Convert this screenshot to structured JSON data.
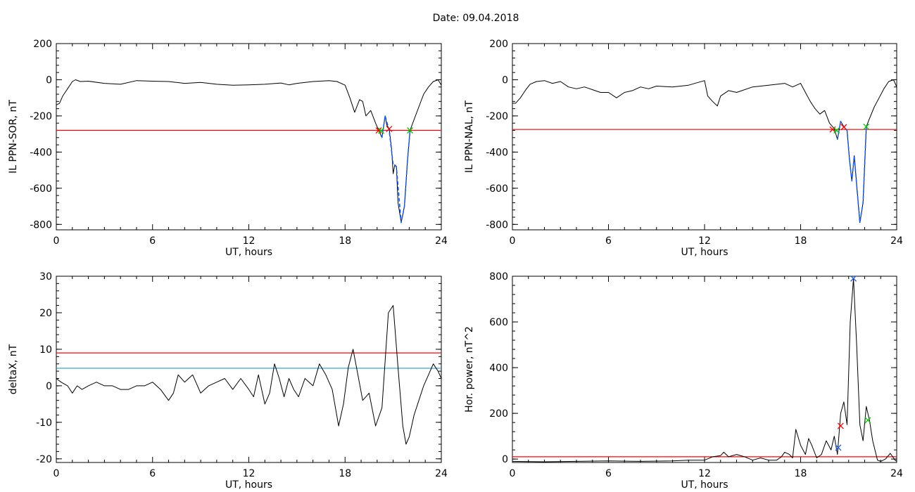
{
  "page": {
    "title": "Date:  09.04.2018"
  },
  "colors": {
    "trace": "#000000",
    "threshold_red": "#ff0000",
    "threshold_blue": "#1f9fd0",
    "fit_blue": "#1060ff",
    "marker_red": "#ff0000",
    "marker_green": "#00c800",
    "marker_blue": "#1f5fe0"
  },
  "chart_data": [
    {
      "id": "sor",
      "type": "line",
      "xlabel": "UT, hours",
      "ylabel": "IL PPN-SOR, nT",
      "xlim": [
        0,
        24
      ],
      "ylim": [
        -830,
        200
      ],
      "xticks": [
        0,
        6,
        12,
        18,
        24
      ],
      "yticks": [
        200,
        0,
        -200,
        -400,
        -600,
        -800
      ],
      "threshold": {
        "y": -280,
        "color": "#ff0000"
      },
      "series": [
        {
          "style": "trace",
          "x": [
            0,
            0.2,
            0.4,
            0.7,
            1.0,
            1.2,
            1.5,
            2,
            3,
            4,
            5,
            6,
            7,
            8,
            9,
            10,
            11,
            12,
            13,
            14,
            14.5,
            15,
            16,
            17,
            17.5,
            18,
            18.3,
            18.6,
            18.9,
            19.1,
            19.3,
            19.6,
            19.9,
            20.1,
            20.3,
            20.5,
            20.6,
            20.75,
            20.9,
            21.0,
            21.1,
            21.2,
            21.3,
            21.5,
            21.7,
            21.9,
            22.05,
            22.3,
            22.6,
            22.9,
            23.2,
            23.5,
            23.8,
            24
          ],
          "y": [
            -140,
            -130,
            -90,
            -50,
            -10,
            0,
            -10,
            -8,
            -20,
            -25,
            -5,
            -8,
            -10,
            -20,
            -15,
            -25,
            -30,
            -28,
            -25,
            -18,
            -28,
            -20,
            -10,
            -5,
            -10,
            -30,
            -100,
            -180,
            -110,
            -120,
            -200,
            -170,
            -240,
            -280,
            -320,
            -200,
            -250,
            -270,
            -380,
            -520,
            -470,
            -480,
            -680,
            -790,
            -700,
            -440,
            -280,
            -220,
            -150,
            -80,
            -40,
            -10,
            0,
            -30
          ]
        },
        {
          "style": "fit",
          "x": [
            20.3,
            20.5,
            20.75,
            21.0,
            21.2,
            21.5,
            21.7,
            21.9,
            22.05
          ],
          "y": [
            -320,
            -200,
            -280,
            -470,
            -480,
            -790,
            -700,
            -440,
            -280
          ]
        }
      ],
      "markers": [
        {
          "x": 20.1,
          "y": -280,
          "color": "#ff0000"
        },
        {
          "x": 20.25,
          "y": -282,
          "color": "#00c800"
        },
        {
          "x": 20.75,
          "y": -272,
          "color": "#ff0000"
        },
        {
          "x": 22.05,
          "y": -280,
          "color": "#00c800"
        }
      ]
    },
    {
      "id": "nal",
      "type": "line",
      "xlabel": "UT, hours",
      "ylabel": "IL PPN-NAL, nT",
      "xlim": [
        0,
        24
      ],
      "ylim": [
        -830,
        200
      ],
      "xticks": [
        0,
        6,
        12,
        18,
        24
      ],
      "yticks": [
        200,
        0,
        -200,
        -400,
        -600,
        -800
      ],
      "threshold": {
        "y": -275,
        "color": "#ff0000"
      },
      "series": [
        {
          "style": "trace",
          "x": [
            0,
            0.2,
            0.5,
            0.8,
            1.1,
            1.5,
            2,
            2.5,
            3,
            3.5,
            4,
            4.5,
            5,
            5.5,
            6,
            6.5,
            7,
            7.5,
            8,
            8.5,
            9,
            10,
            11,
            12,
            12.2,
            12.5,
            12.8,
            13,
            13.5,
            14,
            15,
            16,
            17,
            17.5,
            18,
            18.3,
            18.6,
            18.9,
            19.2,
            19.5,
            19.8,
            20.1,
            20.3,
            20.5,
            20.7,
            20.9,
            21.05,
            21.2,
            21.35,
            21.5,
            21.7,
            21.9,
            22.1,
            22.3,
            22.6,
            22.9,
            23.2,
            23.5,
            23.8,
            24
          ],
          "y": [
            -130,
            -130,
            -100,
            -60,
            -25,
            -10,
            -5,
            -20,
            -10,
            -40,
            -50,
            -40,
            -55,
            -70,
            -70,
            -100,
            -70,
            -60,
            -40,
            -50,
            -35,
            -40,
            -30,
            -5,
            -90,
            -120,
            -145,
            -90,
            -60,
            -70,
            -40,
            -30,
            -20,
            -40,
            -20,
            -70,
            -120,
            -160,
            -190,
            -170,
            -240,
            -270,
            -330,
            -230,
            -260,
            -280,
            -440,
            -560,
            -420,
            -580,
            -790,
            -680,
            -260,
            -215,
            -150,
            -100,
            -50,
            -10,
            0,
            -40
          ]
        },
        {
          "style": "fit",
          "x": [
            20.3,
            20.5,
            20.7,
            20.9,
            21.05,
            21.2,
            21.35,
            21.5,
            21.7,
            21.9,
            22.1
          ],
          "y": [
            -330,
            -230,
            -260,
            -280,
            -440,
            -560,
            -420,
            -580,
            -790,
            -680,
            -260
          ]
        }
      ],
      "markers": [
        {
          "x": 20.0,
          "y": -275,
          "color": "#ff0000"
        },
        {
          "x": 20.25,
          "y": -280,
          "color": "#00c800"
        },
        {
          "x": 20.7,
          "y": -262,
          "color": "#ff0000"
        },
        {
          "x": 22.1,
          "y": -260,
          "color": "#00c800"
        }
      ]
    },
    {
      "id": "deltax",
      "type": "line",
      "xlabel": "UT, hours",
      "ylabel": "deltaX, nT",
      "xlim": [
        0,
        24
      ],
      "ylim": [
        -21,
        30
      ],
      "xticks": [
        0,
        6,
        12,
        18,
        24
      ],
      "yticks": [
        30,
        20,
        10,
        0,
        -10,
        -20
      ],
      "thresholds": [
        {
          "y": 9,
          "color": "#ff0000"
        },
        {
          "y": 4.8,
          "color": "#1f9fd0"
        }
      ],
      "series": [
        {
          "style": "trace",
          "x": [
            0,
            0.3,
            0.7,
            1.0,
            1.3,
            1.6,
            2,
            2.5,
            3,
            3.5,
            4,
            4.5,
            5,
            5.5,
            6,
            6.5,
            7,
            7.3,
            7.6,
            8,
            8.5,
            9,
            9.5,
            10,
            10.5,
            11,
            11.5,
            12,
            12.3,
            12.6,
            13,
            13.3,
            13.6,
            13.9,
            14.2,
            14.5,
            14.8,
            15.1,
            15.5,
            16,
            16.4,
            16.8,
            17.2,
            17.6,
            17.9,
            18.2,
            18.5,
            18.8,
            19.1,
            19.5,
            19.9,
            20.3,
            20.7,
            21.0,
            21.3,
            21.6,
            21.8,
            22.0,
            22.3,
            22.6,
            22.9,
            23.2,
            23.5,
            23.8,
            24
          ],
          "y": [
            2,
            1,
            0,
            -2,
            0,
            -1,
            0,
            1,
            0,
            0,
            -1,
            -1,
            0,
            0,
            1,
            -1,
            -4,
            -2,
            3,
            1,
            3,
            -2,
            0,
            1,
            2,
            -1,
            2,
            -1,
            -3,
            3,
            -5,
            -2,
            6,
            2,
            -3,
            2,
            -1,
            -3,
            2,
            0,
            6,
            3,
            -1,
            -11,
            -5,
            5,
            10,
            3,
            -4,
            -2,
            -11,
            -6,
            20,
            22,
            5,
            -11,
            -16,
            -14,
            -8,
            -4,
            0,
            3,
            6,
            4,
            2
          ]
        }
      ]
    },
    {
      "id": "power",
      "type": "line",
      "xlabel": "UT, hours",
      "ylabel": "Hor. power, nT^2",
      "xlim": [
        0,
        24
      ],
      "ylim": [
        -15,
        800
      ],
      "xticks": [
        0,
        6,
        12,
        18,
        24
      ],
      "yticks": [
        800,
        600,
        400,
        200,
        0
      ],
      "threshold": {
        "y": 10,
        "color": "#ff0000"
      },
      "series": [
        {
          "style": "trace",
          "x": [
            0,
            2,
            4,
            6,
            8,
            10,
            11,
            12,
            12.5,
            13,
            13.2,
            13.5,
            14,
            14.5,
            15,
            15.5,
            16,
            16.5,
            16.8,
            17,
            17.3,
            17.5,
            17.7,
            18,
            18.3,
            18.5,
            18.7,
            19,
            19.3,
            19.6,
            19.9,
            20.1,
            20.3,
            20.5,
            20.7,
            20.9,
            21.1,
            21.3,
            21.5,
            21.7,
            21.9,
            22.1,
            22.3,
            22.5,
            22.8,
            23,
            23.3,
            23.6,
            23.9,
            24
          ],
          "y": [
            -10,
            -12,
            -10,
            -8,
            -10,
            -8,
            -5,
            -5,
            10,
            15,
            30,
            10,
            20,
            10,
            -5,
            5,
            -5,
            -5,
            10,
            30,
            20,
            5,
            130,
            60,
            20,
            90,
            60,
            5,
            20,
            80,
            40,
            100,
            20,
            200,
            250,
            150,
            600,
            790,
            500,
            150,
            80,
            230,
            170,
            80,
            -5,
            -10,
            0,
            25,
            -5,
            -10
          ]
        }
      ],
      "markers": [
        {
          "x": 20.5,
          "y": 145,
          "color": "#ff0000"
        },
        {
          "x": 20.35,
          "y": 50,
          "color": "#1f5fe0"
        },
        {
          "x": 21.3,
          "y": 790,
          "color": "#1f5fe0"
        },
        {
          "x": 22.2,
          "y": 170,
          "color": "#00c800"
        }
      ]
    }
  ]
}
